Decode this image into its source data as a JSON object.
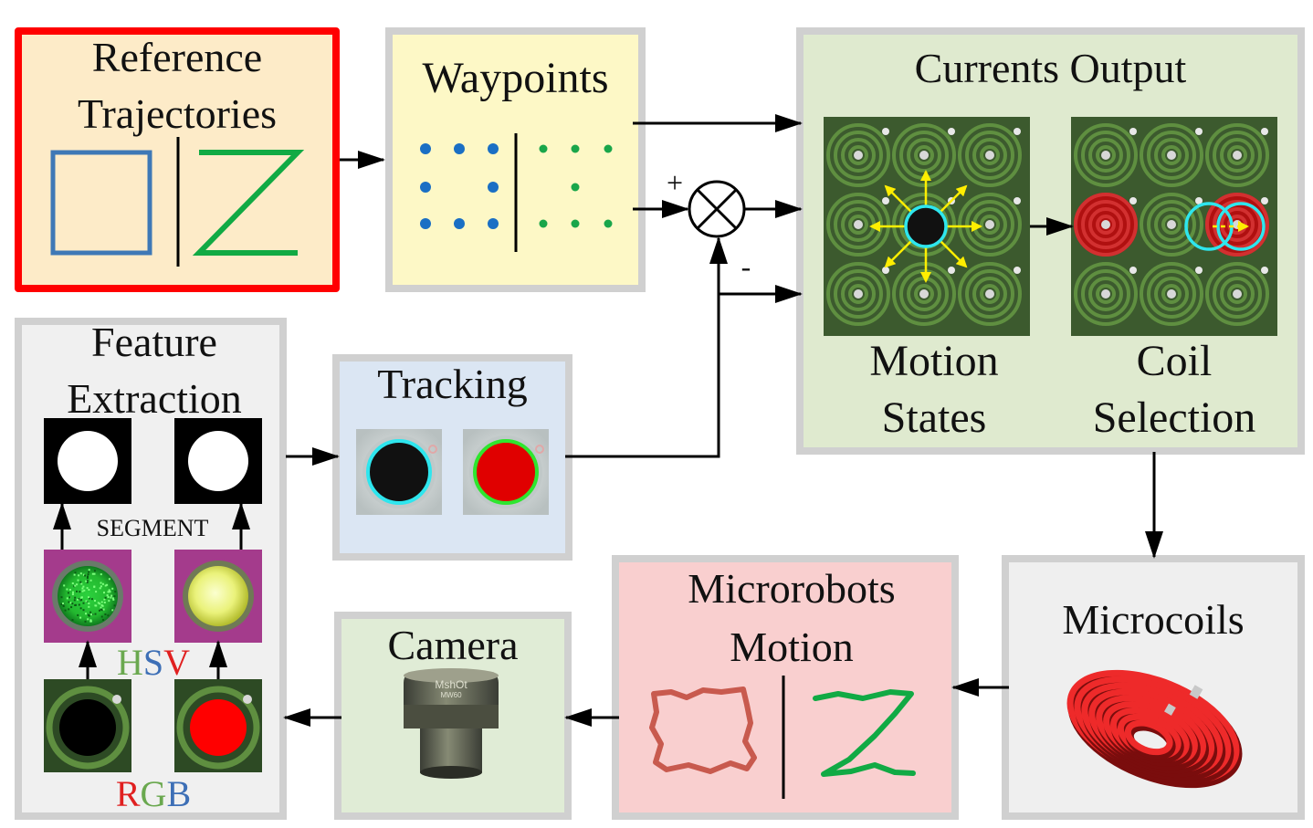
{
  "blocks": {
    "reference": {
      "line1": "Reference",
      "line2": "Trajectories"
    },
    "waypoints": {
      "title": "Waypoints"
    },
    "currents": {
      "title": "Currents Output",
      "motion_line1": "Motion",
      "motion_line2": "States",
      "coil_line1": "Coil",
      "coil_line2": "Selection"
    },
    "feature": {
      "line1": "Feature",
      "line2": "Extraction",
      "segment": "SEGMENT",
      "hsv_h": "H",
      "hsv_s": "S",
      "hsv_v": "V",
      "rgb_r": "R",
      "rgb_g": "G",
      "rgb_b": "B"
    },
    "tracking": {
      "title": "Tracking"
    },
    "microcoils": {
      "title": "Microcoils"
    },
    "microrobots": {
      "line1": "Microrobots",
      "line2": "Motion"
    },
    "camera": {
      "title": "Camera",
      "lens_text1": "MshOt",
      "lens_text2": "MW60"
    }
  },
  "signs": {
    "plus": "+",
    "minus": "-"
  },
  "colors": {
    "border_gray": "#d0d0d0",
    "reference_border": "#ff0000",
    "reference_fill": "#fdebc8",
    "waypoints_fill": "#fdf8c6",
    "currents_fill": "#dfeacf",
    "feature_fill": "#f0f0f0",
    "tracking_fill": "#dbe6f3",
    "microcoils_fill": "#efefef",
    "microrobots_fill": "#f9cfcf",
    "camera_fill": "#e0ecd6",
    "square_blue": "#3e78b6",
    "z_green": "#11aa44",
    "dot_blue": "#1a6fc4",
    "dot_green": "#19a64a",
    "coil_board": "#3c5a2e",
    "coil_ring": "#5f8f40",
    "highlight_cyan": "#2ee6ee",
    "arrow_yellow": "#ffee00",
    "active_red": "#cc1111"
  }
}
